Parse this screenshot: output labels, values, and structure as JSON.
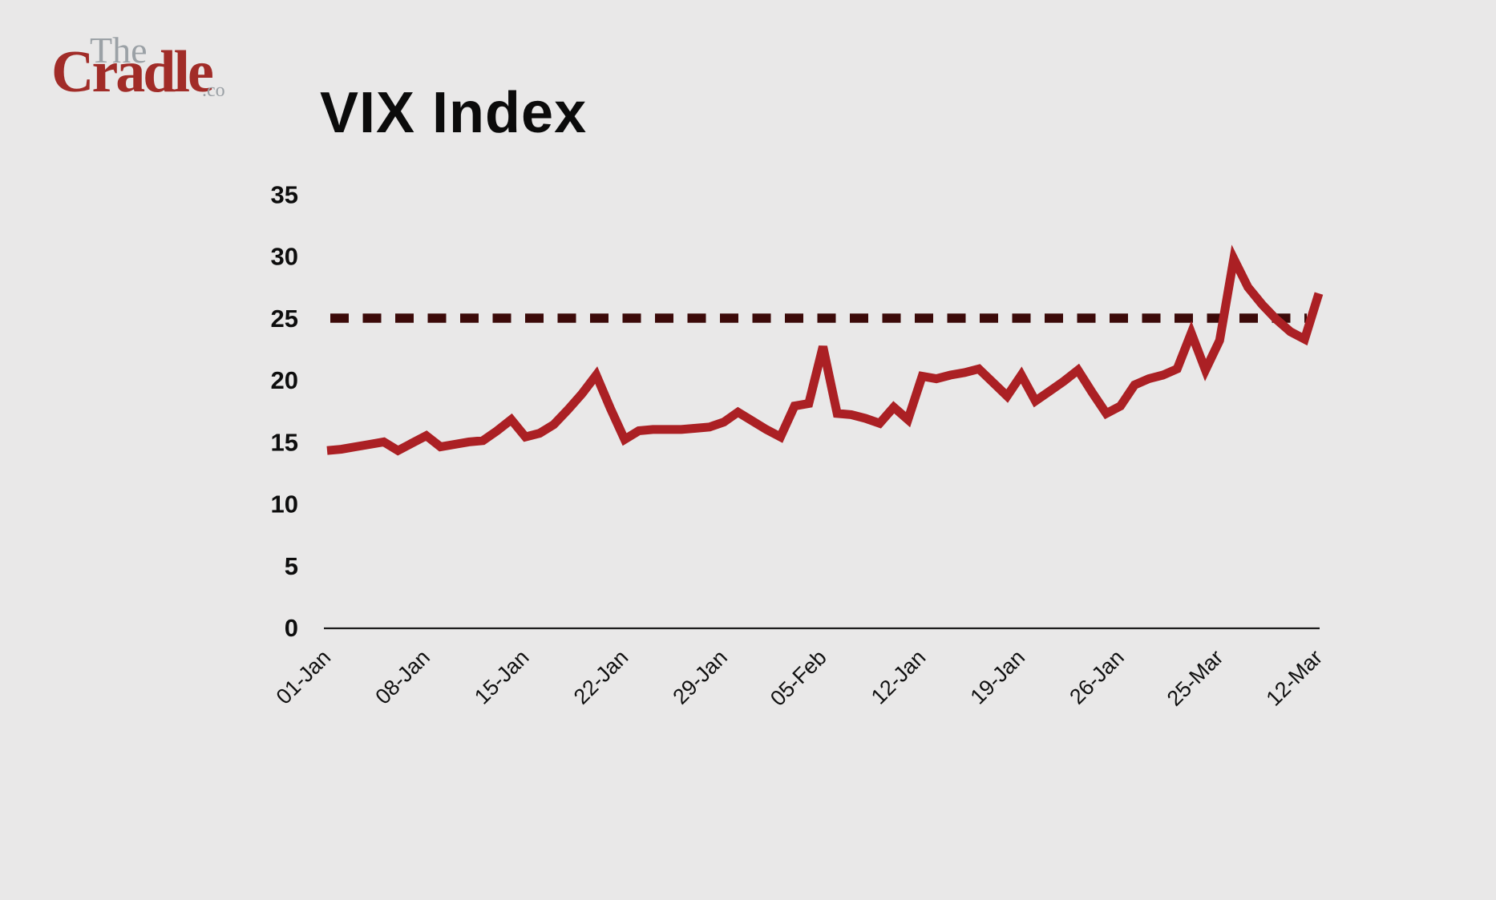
{
  "brand": {
    "the": "The",
    "cradle": "Cradle",
    "suffix": ".co",
    "cradle_color": "#a12c28",
    "gray_color": "#9ba1a6"
  },
  "chart_data": {
    "type": "line",
    "title": "VIX Index",
    "xlabel": "",
    "ylabel": "",
    "ylim": [
      0,
      35
    ],
    "y_ticks": [
      0,
      5,
      10,
      15,
      20,
      25,
      30,
      35
    ],
    "grid": false,
    "legend": "none",
    "background_color": "#e9e8e8",
    "axis_color": "#1c1c1c",
    "text_color": "#0d0d0d",
    "x_tick_labels": [
      "01-Jan",
      "08-Jan",
      "15-Jan",
      "22-Jan",
      "29-Jan",
      "05-Feb",
      "12-Jan",
      "19-Jan",
      "26-Jan",
      "25-Mar",
      "12-Mar"
    ],
    "x_tick_indices": [
      0,
      7,
      14,
      21,
      28,
      35,
      42,
      49,
      56,
      63,
      70
    ],
    "threshold_line": {
      "value": 25,
      "style": "dashed",
      "color": "#3c0a09"
    },
    "series": [
      {
        "name": "VIX",
        "color": "#ab2024",
        "values": [
          14.3,
          14.4,
          14.6,
          14.8,
          15.0,
          14.3,
          14.9,
          15.5,
          14.6,
          14.8,
          15.0,
          15.1,
          15.9,
          16.8,
          15.4,
          15.7,
          16.4,
          17.6,
          18.9,
          20.4,
          17.7,
          15.2,
          15.9,
          16.0,
          16.0,
          16.0,
          16.1,
          16.2,
          16.6,
          17.4,
          16.7,
          16.0,
          15.4,
          17.9,
          18.1,
          22.7,
          17.3,
          17.2,
          16.9,
          16.5,
          17.8,
          16.8,
          20.3,
          20.1,
          20.4,
          20.6,
          20.9,
          19.8,
          18.7,
          20.4,
          18.3,
          19.1,
          19.9,
          20.8,
          19.0,
          17.3,
          17.9,
          19.6,
          20.1,
          20.4,
          20.9,
          23.8,
          20.8,
          23.2,
          29.8,
          27.5,
          26.1,
          24.9,
          23.9,
          23.3,
          27.0
        ]
      }
    ]
  }
}
